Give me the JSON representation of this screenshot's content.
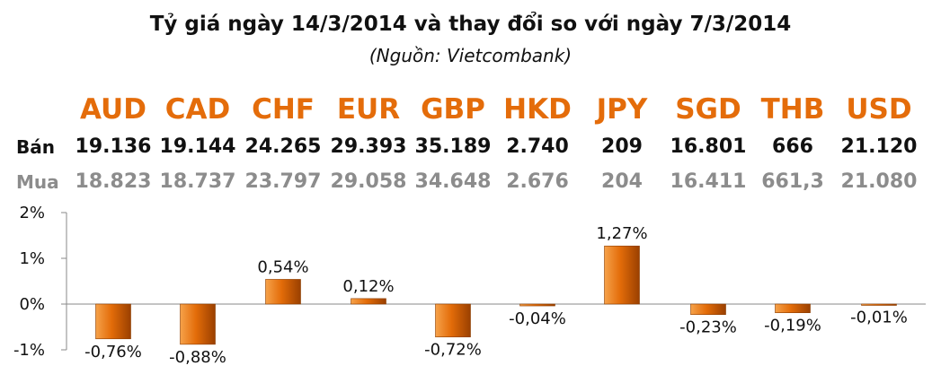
{
  "title": "Tỷ giá ngày 14/3/2014 và thay đổi so với ngày 7/3/2014",
  "source": "(Nguồn: Vietcombank)",
  "row_labels": {
    "sell": "Bán",
    "buy": "Mua"
  },
  "colors": {
    "code": "#e46c0a",
    "bar": "#e36c09",
    "buy_text": "#8c8c8c"
  },
  "table": {
    "codes": [
      "AUD",
      "CAD",
      "CHF",
      "EUR",
      "GBP",
      "HKD",
      "JPY",
      "SGD",
      "THB",
      "USD"
    ],
    "sell": [
      "19.136",
      "19.144",
      "24.265",
      "29.393",
      "35.189",
      "2.740",
      "209",
      "16.801",
      "666",
      "21.120"
    ],
    "buy": [
      "18.823",
      "18.737",
      "23.797",
      "29.058",
      "34.648",
      "2.676",
      "204",
      "16.411",
      "661,3",
      "21.080"
    ]
  },
  "chart_data": {
    "type": "bar",
    "categories": [
      "AUD",
      "CAD",
      "CHF",
      "EUR",
      "GBP",
      "HKD",
      "JPY",
      "SGD",
      "THB",
      "USD"
    ],
    "values": [
      -0.76,
      -0.88,
      0.54,
      0.12,
      -0.72,
      -0.04,
      1.27,
      -0.23,
      -0.19,
      -0.01
    ],
    "data_labels": [
      "-0,76%",
      "-0,88%",
      "0,54%",
      "0,12%",
      "-0,72%",
      "-0,04%",
      "1,27%",
      "-0,23%",
      "-0,19%",
      "-0,01%"
    ],
    "yticks": [
      -1,
      0,
      1,
      2
    ],
    "ytick_labels": [
      "-1%",
      "0%",
      "1%",
      "2%"
    ],
    "ylim": [
      -1,
      2
    ],
    "title": "",
    "xlabel": "",
    "ylabel": "",
    "grid": false,
    "legend": "none"
  }
}
